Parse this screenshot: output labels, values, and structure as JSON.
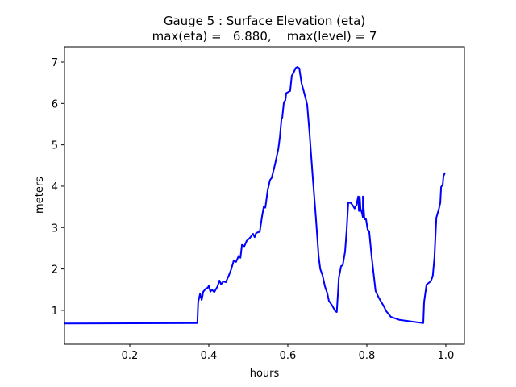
{
  "chart_data": {
    "type": "line",
    "title_line1": "Gauge 5 : Surface Elevation (eta)",
    "title_line2": "max(eta) =   6.880,    max(level) = 7",
    "xlabel": "hours",
    "ylabel": "meters",
    "xlim": [
      0.0347,
      1.047
    ],
    "ylim": [
      0.18,
      7.37
    ],
    "xticks": [
      0.2,
      0.4,
      0.6,
      0.8,
      1.0
    ],
    "xtick_labels": [
      "0.2",
      "0.4",
      "0.6",
      "0.8",
      "1.0"
    ],
    "yticks": [
      1,
      2,
      3,
      4,
      5,
      6,
      7
    ],
    "ytick_labels": [
      "1",
      "2",
      "3",
      "4",
      "5",
      "6",
      "7"
    ],
    "grid": false,
    "series": [
      {
        "name": "eta",
        "color": "#0000ff",
        "x": [
          0.0347,
          0.371,
          0.373,
          0.378,
          0.382,
          0.386,
          0.392,
          0.398,
          0.4,
          0.404,
          0.408,
          0.414,
          0.422,
          0.427,
          0.431,
          0.437,
          0.443,
          0.451,
          0.457,
          0.463,
          0.469,
          0.476,
          0.48,
          0.484,
          0.49,
          0.496,
          0.504,
          0.512,
          0.516,
          0.52,
          0.529,
          0.535,
          0.539,
          0.543,
          0.549,
          0.555,
          0.559,
          0.567,
          0.576,
          0.58,
          0.584,
          0.586,
          0.59,
          0.594,
          0.596,
          0.602,
          0.606,
          0.61,
          0.614,
          0.62,
          0.624,
          0.629,
          0.635,
          0.639,
          0.645,
          0.649,
          0.655,
          0.663,
          0.671,
          0.678,
          0.682,
          0.688,
          0.694,
          0.7,
          0.704,
          0.712,
          0.72,
          0.724,
          0.727,
          0.729,
          0.735,
          0.739,
          0.745,
          0.749,
          0.753,
          0.759,
          0.765,
          0.769,
          0.774,
          0.778,
          0.78,
          0.782,
          0.784,
          0.788,
          0.79,
          0.79,
          0.794,
          0.798,
          0.802,
          0.806,
          0.812,
          0.822,
          0.831,
          0.843,
          0.849,
          0.861,
          0.882,
          0.912,
          0.943,
          0.945,
          0.951,
          0.959,
          0.963,
          0.967,
          0.971,
          0.976,
          0.982,
          0.986,
          0.988,
          0.992,
          0.994,
          0.998
        ],
        "y": [
          0.68,
          0.69,
          1.2,
          1.4,
          1.25,
          1.45,
          1.52,
          1.55,
          1.6,
          1.45,
          1.5,
          1.44,
          1.58,
          1.72,
          1.63,
          1.7,
          1.68,
          1.85,
          2.0,
          2.2,
          2.17,
          2.32,
          2.27,
          2.58,
          2.55,
          2.68,
          2.75,
          2.85,
          2.77,
          2.87,
          2.9,
          3.28,
          3.5,
          3.48,
          3.9,
          4.15,
          4.2,
          4.5,
          4.9,
          5.2,
          5.62,
          5.66,
          6.03,
          6.08,
          6.25,
          6.28,
          6.3,
          6.67,
          6.73,
          6.86,
          6.88,
          6.85,
          6.48,
          6.34,
          6.13,
          5.97,
          5.29,
          4.22,
          3.24,
          2.31,
          2.0,
          1.84,
          1.58,
          1.41,
          1.23,
          1.12,
          0.98,
          0.96,
          1.43,
          1.78,
          2.07,
          2.09,
          2.42,
          2.95,
          3.6,
          3.6,
          3.53,
          3.46,
          3.55,
          3.75,
          3.4,
          3.75,
          3.46,
          3.34,
          3.24,
          3.75,
          3.2,
          3.2,
          2.95,
          2.91,
          2.31,
          1.47,
          1.29,
          1.1,
          0.98,
          0.84,
          0.77,
          0.73,
          0.69,
          1.2,
          1.62,
          1.68,
          1.72,
          1.84,
          2.27,
          3.24,
          3.44,
          3.6,
          3.98,
          4.04,
          4.24,
          4.33
        ]
      }
    ]
  }
}
